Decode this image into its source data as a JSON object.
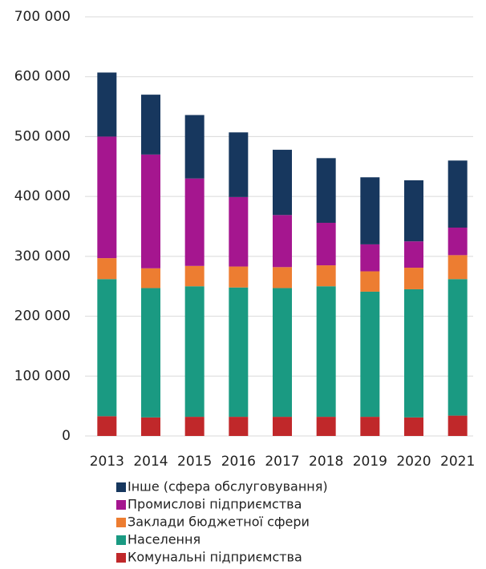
{
  "chart_data": {
    "type": "stacked_bar",
    "categories": [
      "2013",
      "2014",
      "2015",
      "2016",
      "2017",
      "2018",
      "2019",
      "2020",
      "2021"
    ],
    "series": [
      {
        "name": "Комунальні підприємства",
        "color": "#c0282a",
        "values": [
          33000,
          31000,
          32000,
          32000,
          32000,
          32000,
          32000,
          31000,
          34000
        ]
      },
      {
        "name": "Населення",
        "color": "#1a9a82",
        "values": [
          229000,
          216000,
          218000,
          216000,
          215000,
          218000,
          209000,
          214000,
          228000
        ]
      },
      {
        "name": "Заклади бюджетної сфери",
        "color": "#ed7d31",
        "values": [
          35000,
          33000,
          34000,
          35000,
          35000,
          35000,
          34000,
          36000,
          40000
        ]
      },
      {
        "name": "Промислові підприємства",
        "color": "#a5168f",
        "values": [
          203000,
          190000,
          146000,
          116000,
          87000,
          71000,
          45000,
          44000,
          46000
        ]
      },
      {
        "name": "Інше (сфера обслуговування)",
        "color": "#17375e",
        "values": [
          107000,
          100000,
          106000,
          108000,
          109000,
          108000,
          112000,
          102000,
          112000
        ]
      }
    ],
    "ylim": [
      0,
      700000
    ],
    "yticks": [
      0,
      {
        "value": 100000,
        "label": "100 000"
      },
      {
        "value": 200000,
        "label": "200 000"
      },
      {
        "value": 300000,
        "label": "300 000"
      },
      {
        "value": 400000,
        "label": "400 000"
      },
      {
        "value": 500000,
        "label": "500 000"
      },
      {
        "value": 600000,
        "label": "600 000"
      },
      {
        "value": 700000,
        "label": "700 000"
      }
    ],
    "grid": true
  }
}
